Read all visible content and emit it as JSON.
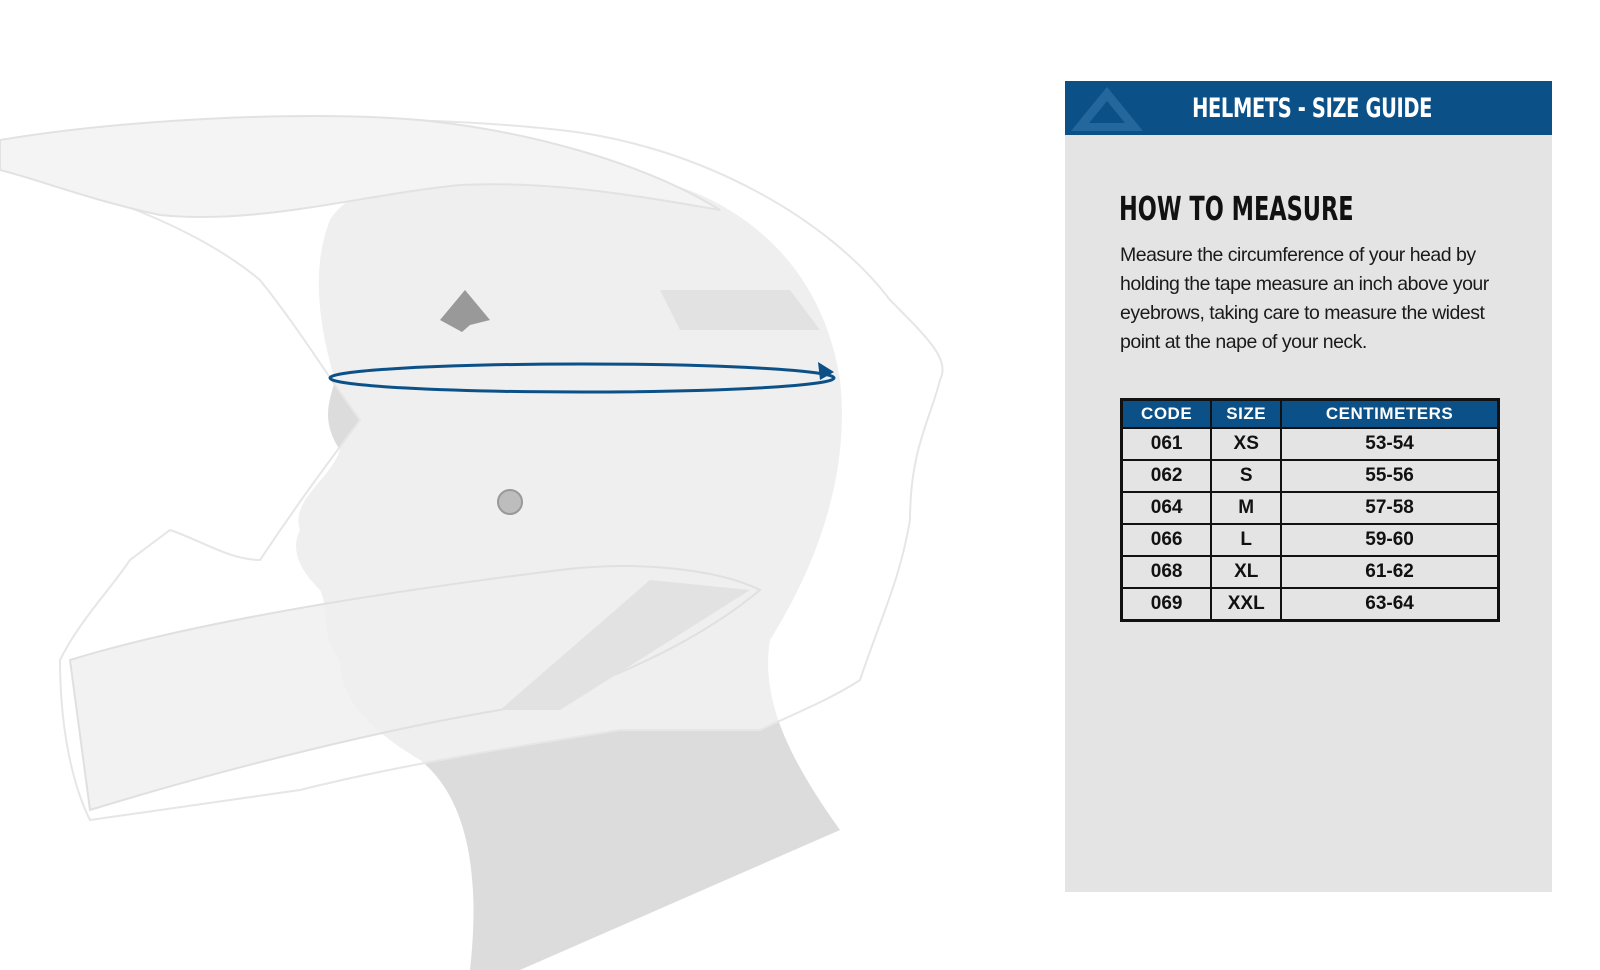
{
  "panel": {
    "title": "HELMETS - SIZE GUIDE",
    "brand_color": "#0b5188",
    "background_color": "#e4e4e4"
  },
  "how_to_measure": {
    "title": "HOW TO MEASURE",
    "text": "Measure the circumference of your head by holding the tape measure an inch above your eyebrows, taking care to measure the widest point at the nape of your neck."
  },
  "size_table": {
    "headers": [
      "CODE",
      "SIZE",
      "CENTIMETERS"
    ],
    "rows": [
      [
        "061",
        "XS",
        "53-54"
      ],
      [
        "062",
        "S",
        "55-56"
      ],
      [
        "064",
        "M",
        "57-58"
      ],
      [
        "066",
        "L",
        "59-60"
      ],
      [
        "068",
        "XL",
        "61-62"
      ],
      [
        "069",
        "XXL",
        "63-64"
      ]
    ]
  },
  "illustration": {
    "icon": "helmet-on-head-measurement-illustration",
    "tape_color": "#0b5188"
  }
}
